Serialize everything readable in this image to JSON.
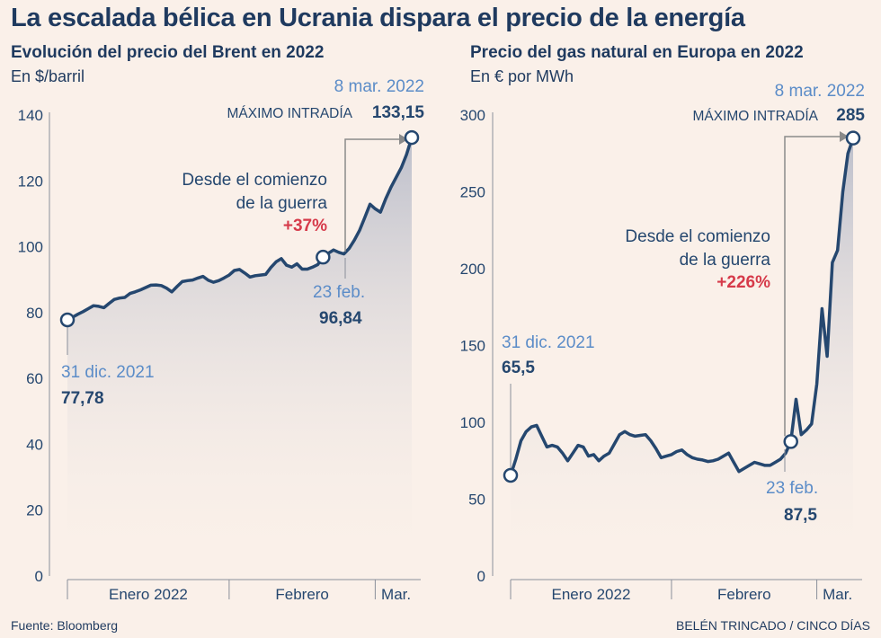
{
  "title": "La escalada bélica en Ucrania dispara el precio de la energía",
  "source": "Fuente: Bloomberg",
  "credit": "BELÉN TRINCADO / CINCO DÍAS",
  "colors": {
    "line": "#25476f",
    "fill_top": "#b6bac8",
    "fill_bottom": "#faf0e9",
    "accent_red": "#d63a4a",
    "date_blue": "#5b8cc8",
    "axis": "#8a8f9a",
    "background": "#faf0e9"
  },
  "chart_data": [
    {
      "type": "area",
      "title": "Evolución del precio del Brent en 2022",
      "ylabel": "En $/barril",
      "ylim": [
        0,
        140
      ],
      "yticks": [
        0,
        20,
        40,
        60,
        80,
        100,
        120,
        140
      ],
      "ytick_labels": [
        "0",
        "20",
        "40",
        "60",
        "80",
        "100",
        "120",
        "140"
      ],
      "x_months": [
        "Enero 2022",
        "Febrero",
        "Mar."
      ],
      "x_month_boundaries_day": [
        0,
        31,
        59,
        67
      ],
      "x": [
        0,
        1,
        2,
        3,
        4,
        5,
        6,
        7,
        8,
        9,
        10,
        11,
        12,
        13,
        14,
        15,
        16,
        17,
        18,
        19,
        20,
        21,
        22,
        23,
        24,
        25,
        26,
        27,
        28,
        29,
        30,
        31,
        32,
        33,
        34,
        35,
        36,
        37,
        38,
        39,
        40,
        41,
        42,
        43,
        44,
        45,
        46,
        47,
        48,
        49,
        50,
        51,
        52,
        53,
        54,
        55,
        56,
        57,
        58,
        59,
        60,
        61,
        62,
        63,
        64,
        65,
        66
      ],
      "y": [
        77.78,
        78.6,
        79.5,
        80.3,
        81.2,
        82.1,
        81.9,
        81.5,
        82.8,
        84.0,
        84.4,
        84.6,
        85.8,
        86.3,
        86.9,
        87.6,
        88.3,
        88.4,
        88.2,
        87.4,
        86.3,
        87.9,
        89.4,
        89.7,
        89.9,
        90.5,
        91.0,
        89.8,
        89.2,
        89.7,
        90.5,
        91.4,
        92.8,
        93.1,
        92.0,
        90.8,
        91.2,
        91.4,
        91.6,
        93.7,
        95.4,
        96.4,
        94.4,
        93.8,
        94.8,
        93.2,
        93.2,
        93.8,
        94.6,
        96.84,
        98.0,
        99.0,
        98.3,
        97.8,
        99.5,
        102.0,
        105.0,
        108.9,
        112.9,
        111.5,
        110.5,
        114.5,
        118.0,
        121.0,
        124.0,
        128.0,
        133.15
      ],
      "markers": [
        {
          "date": "31 dic. 2021",
          "value": "77,78"
        },
        {
          "date": "23 feb.",
          "value": "96,84"
        },
        {
          "date": "8 mar. 2022",
          "label": "MÁXIMO INTRADÍA",
          "value": "133,15"
        }
      ],
      "annotation": {
        "line1": "Desde el comienzo",
        "line2": "de la guerra",
        "change": "+37%"
      }
    },
    {
      "type": "area",
      "title": "Precio del gas natural en Europa en 2022",
      "ylabel": "En € por MWh",
      "ylim": [
        0,
        300
      ],
      "yticks": [
        0,
        50,
        100,
        150,
        200,
        250,
        300
      ],
      "ytick_labels": [
        "0",
        "50",
        "100",
        "150",
        "200",
        "250",
        "300"
      ],
      "x_months": [
        "Enero 2022",
        "Febrero",
        "Mar."
      ],
      "x_month_boundaries_day": [
        0,
        31,
        59,
        67
      ],
      "x": [
        0,
        1,
        2,
        3,
        4,
        5,
        6,
        7,
        8,
        9,
        10,
        11,
        12,
        13,
        14,
        15,
        16,
        17,
        18,
        19,
        20,
        21,
        22,
        23,
        24,
        25,
        26,
        27,
        28,
        29,
        30,
        31,
        32,
        33,
        34,
        35,
        36,
        37,
        38,
        39,
        40,
        41,
        42,
        43,
        44,
        45,
        46,
        47,
        48,
        49,
        50,
        51,
        52,
        53,
        54,
        55,
        56,
        57,
        58,
        59,
        60,
        61,
        62,
        63,
        64,
        65,
        66
      ],
      "y": [
        65.5,
        76.0,
        88.0,
        94.0,
        97.0,
        98.0,
        91.0,
        84.0,
        85.0,
        84.0,
        80.0,
        75.0,
        80.0,
        85.0,
        84.0,
        78.0,
        79.0,
        75.0,
        78.0,
        80.0,
        86.0,
        92.0,
        94.0,
        92.0,
        91.0,
        91.5,
        92.0,
        88.0,
        83.0,
        77.0,
        78.0,
        79.0,
        81.0,
        82.0,
        79.0,
        77.0,
        76.0,
        75.5,
        74.5,
        75.0,
        76.0,
        78.0,
        80.0,
        74.0,
        68.0,
        70.0,
        72.0,
        74.0,
        73.0,
        72.0,
        72.0,
        74.0,
        76.0,
        80.0,
        87.5,
        115.0,
        92.0,
        95.0,
        99.0,
        125.0,
        174.0,
        143.0,
        204.0,
        212.0,
        250.0,
        275.0,
        285.0
      ],
      "markers": [
        {
          "date": "31 dic. 2021",
          "value": "65,5"
        },
        {
          "date": "23 feb.",
          "value": "87,5"
        },
        {
          "date": "8 mar. 2022",
          "label": "MÁXIMO INTRADÍA",
          "value": "285"
        }
      ],
      "annotation": {
        "line1": "Desde el comienzo",
        "line2": "de la guerra",
        "change": "+226%"
      }
    }
  ]
}
